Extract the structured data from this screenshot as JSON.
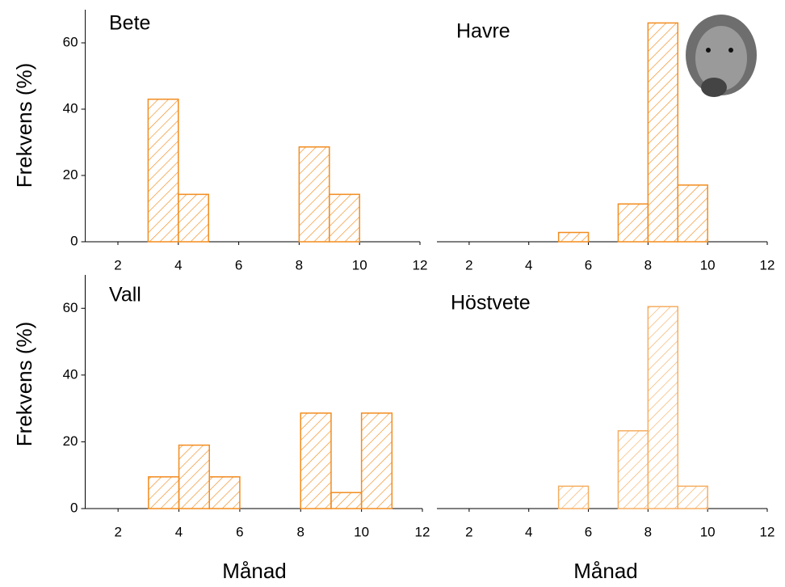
{
  "chart_data": [
    {
      "type": "histogram",
      "title": "Bete",
      "y_label": "Frekvens (%)",
      "color": "#f28c1e",
      "bins": [
        3,
        4,
        5,
        6,
        7,
        8,
        9,
        10
      ],
      "values": [
        43,
        14.3,
        0,
        0,
        0,
        28.6,
        14.3
      ],
      "xlim": [
        1,
        12
      ],
      "xticks": [
        2,
        4,
        6,
        8,
        10,
        12
      ],
      "ylim": [
        0,
        70
      ],
      "yticks": [
        0,
        20,
        40,
        60
      ]
    },
    {
      "type": "histogram",
      "title": "Havre",
      "color": "#f28c1e",
      "bins": [
        5,
        6,
        7,
        8,
        9,
        10
      ],
      "values": [
        2.8,
        0,
        11.4,
        66,
        17.1
      ],
      "xlim": [
        1,
        12
      ],
      "xticks": [
        2,
        4,
        6,
        8,
        10,
        12
      ],
      "ylim": [
        0,
        70
      ]
    },
    {
      "type": "histogram",
      "title": "Vall",
      "y_label": "Frekvens (%)",
      "x_label": "Månad",
      "color": "#f28c1e",
      "bins": [
        3,
        4,
        5,
        6,
        7,
        8,
        9,
        10,
        11
      ],
      "values": [
        9.5,
        19,
        9.5,
        0,
        0,
        28.6,
        4.8,
        28.6
      ],
      "xlim": [
        1,
        12
      ],
      "xticks": [
        2,
        4,
        6,
        8,
        10,
        12
      ],
      "ylim": [
        0,
        70
      ],
      "yticks": [
        0,
        20,
        40,
        60
      ]
    },
    {
      "type": "histogram",
      "title": "Höstvete",
      "x_label": "Månad",
      "color": "#f5ae62",
      "bins": [
        5,
        6,
        7,
        8,
        9,
        10
      ],
      "values": [
        6.7,
        0,
        23.3,
        60.5,
        6.7
      ],
      "xlim": [
        1,
        12
      ],
      "xticks": [
        2,
        4,
        6,
        8,
        10,
        12
      ],
      "ylim": [
        0,
        70
      ]
    }
  ]
}
